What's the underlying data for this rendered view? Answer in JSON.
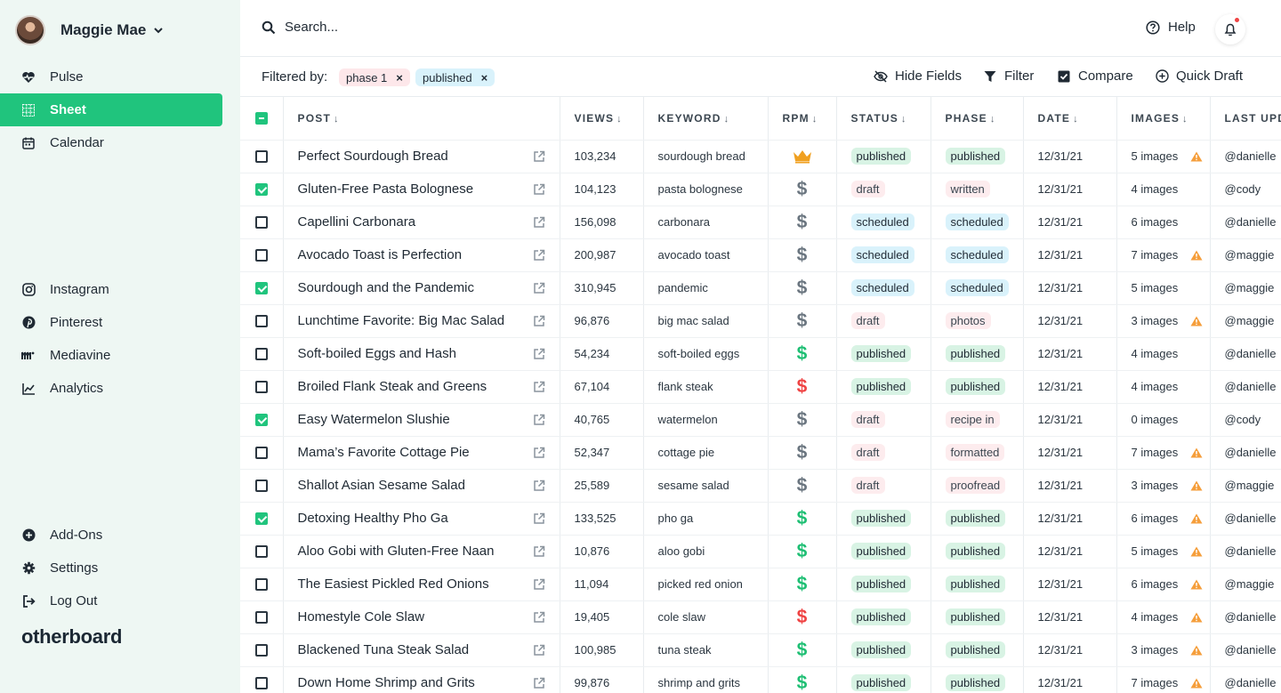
{
  "user": {
    "name": "Maggie Mae"
  },
  "nav": {
    "top": [
      {
        "label": "Pulse",
        "icon": "heartbeat-icon",
        "active": false
      },
      {
        "label": "Sheet",
        "icon": "grid-icon",
        "active": true
      },
      {
        "label": "Calendar",
        "icon": "calendar-icon",
        "active": false
      }
    ],
    "integrations": [
      {
        "label": "Instagram",
        "icon": "instagram-icon"
      },
      {
        "label": "Pinterest",
        "icon": "pinterest-icon"
      },
      {
        "label": "Mediavine",
        "icon": "mediavine-icon"
      },
      {
        "label": "Analytics",
        "icon": "analytics-icon"
      }
    ],
    "bottom": [
      {
        "label": "Add-Ons",
        "icon": "plus-circle-icon"
      },
      {
        "label": "Settings",
        "icon": "gear-icon"
      },
      {
        "label": "Log Out",
        "icon": "logout-icon"
      }
    ]
  },
  "brand": "otherboard",
  "search": {
    "placeholder": "Search..."
  },
  "header": {
    "help_label": "Help"
  },
  "filters": {
    "label": "Filtered by:",
    "chips": [
      "phase 1",
      "published"
    ]
  },
  "toolbar": {
    "hide_fields": "Hide Fields",
    "filter": "Filter",
    "compare": "Compare",
    "quick_draft": "Quick Draft"
  },
  "columns": [
    "POST",
    "VIEWS",
    "KEYWORD",
    "RPM",
    "STATUS",
    "PHASE",
    "DATE",
    "IMAGES",
    "LAST UPD"
  ],
  "colors": {
    "accent": "#20c47d",
    "rpm_gray": "#6b7680",
    "rpm_green": "#1fbf74",
    "rpm_red": "#ef4444",
    "crown": "#f0a020",
    "warning": "#f59e3b"
  },
  "pill_styles": {
    "published": {
      "bg": "#d8f3e4",
      "fg": "#1f2933"
    },
    "scheduled": {
      "bg": "#d9f2fb",
      "fg": "#1f2933"
    },
    "draft": {
      "bg": "#fdecee",
      "fg": "#3b4650"
    },
    "written": {
      "bg": "#fdecee",
      "fg": "#3b4650"
    },
    "photos": {
      "bg": "#fdecee",
      "fg": "#3b4650"
    },
    "recipe in": {
      "bg": "#fdecee",
      "fg": "#3b4650"
    },
    "formatted": {
      "bg": "#fdecee",
      "fg": "#3b4650"
    },
    "proofread": {
      "bg": "#fdecee",
      "fg": "#3b4650"
    }
  },
  "rows": [
    {
      "checked": false,
      "post": "Perfect Sourdough Bread",
      "views": "103,234",
      "keyword": "sourdough bread",
      "rpm": "crown",
      "status": "published",
      "phase": "published",
      "date": "12/31/21",
      "images": "5 images",
      "warning": true,
      "last_updated": "@danielle"
    },
    {
      "checked": true,
      "post": "Gluten-Free Pasta Bolognese",
      "views": "104,123",
      "keyword": "pasta bolognese",
      "rpm": "gray",
      "status": "draft",
      "phase": "written",
      "date": "12/31/21",
      "images": "4 images",
      "warning": false,
      "last_updated": "@cody"
    },
    {
      "checked": false,
      "post": "Capellini Carbonara",
      "views": "156,098",
      "keyword": "carbonara",
      "rpm": "gray",
      "status": "scheduled",
      "phase": "scheduled",
      "date": "12/31/21",
      "images": "6 images",
      "warning": false,
      "last_updated": "@danielle"
    },
    {
      "checked": false,
      "post": "Avocado Toast is Perfection",
      "views": "200,987",
      "keyword": "avocado toast",
      "rpm": "gray",
      "status": "scheduled",
      "phase": "scheduled",
      "date": "12/31/21",
      "images": "7 images",
      "warning": true,
      "last_updated": "@maggie"
    },
    {
      "checked": true,
      "post": "Sourdough and the Pandemic",
      "views": "310,945",
      "keyword": "pandemic",
      "rpm": "gray",
      "status": "scheduled",
      "phase": "scheduled",
      "date": "12/31/21",
      "images": "5 images",
      "warning": false,
      "last_updated": "@maggie"
    },
    {
      "checked": false,
      "post": "Lunchtime Favorite: Big Mac Salad",
      "views": "96,876",
      "keyword": "big mac salad",
      "rpm": "gray",
      "status": "draft",
      "phase": "photos",
      "date": "12/31/21",
      "images": "3 images",
      "warning": true,
      "last_updated": "@maggie"
    },
    {
      "checked": false,
      "post": "Soft-boiled Eggs and Hash",
      "views": "54,234",
      "keyword": "soft-boiled eggs",
      "rpm": "green",
      "status": "published",
      "phase": "published",
      "date": "12/31/21",
      "images": "4 images",
      "warning": false,
      "last_updated": "@danielle"
    },
    {
      "checked": false,
      "post": "Broiled Flank Steak and Greens",
      "views": "67,104",
      "keyword": "flank steak",
      "rpm": "red",
      "status": "published",
      "phase": "published",
      "date": "12/31/21",
      "images": "4 images",
      "warning": false,
      "last_updated": "@danielle"
    },
    {
      "checked": true,
      "post": "Easy Watermelon Slushie",
      "views": "40,765",
      "keyword": "watermelon",
      "rpm": "gray",
      "status": "draft",
      "phase": "recipe in",
      "date": "12/31/21",
      "images": "0 images",
      "warning": false,
      "last_updated": "@cody"
    },
    {
      "checked": false,
      "post": "Mama’s Favorite Cottage Pie",
      "views": "52,347",
      "keyword": "cottage pie",
      "rpm": "gray",
      "status": "draft",
      "phase": "formatted",
      "date": "12/31/21",
      "images": "7 images",
      "warning": true,
      "last_updated": "@danielle"
    },
    {
      "checked": false,
      "post": "Shallot Asian Sesame Salad",
      "views": "25,589",
      "keyword": "sesame salad",
      "rpm": "gray",
      "status": "draft",
      "phase": "proofread",
      "date": "12/31/21",
      "images": "3 images",
      "warning": true,
      "last_updated": "@maggie"
    },
    {
      "checked": true,
      "post": "Detoxing Healthy Pho Ga",
      "views": "133,525",
      "keyword": "pho ga",
      "rpm": "green",
      "status": "published",
      "phase": "published",
      "date": "12/31/21",
      "images": "6 images",
      "warning": true,
      "last_updated": "@danielle"
    },
    {
      "checked": false,
      "post": "Aloo Gobi with Gluten-Free Naan",
      "views": "10,876",
      "keyword": "aloo gobi",
      "rpm": "green",
      "status": "published",
      "phase": "published",
      "date": "12/31/21",
      "images": "5 images",
      "warning": true,
      "last_updated": "@danielle"
    },
    {
      "checked": false,
      "post": "The Easiest Pickled Red Onions",
      "views": "11,094",
      "keyword": "picked red onion",
      "rpm": "green",
      "status": "published",
      "phase": "published",
      "date": "12/31/21",
      "images": "6 images",
      "warning": true,
      "last_updated": "@maggie"
    },
    {
      "checked": false,
      "post": "Homestyle Cole Slaw",
      "views": "19,405",
      "keyword": "cole slaw",
      "rpm": "red",
      "status": "published",
      "phase": "published",
      "date": "12/31/21",
      "images": "4 images",
      "warning": true,
      "last_updated": "@danielle"
    },
    {
      "checked": false,
      "post": "Blackened Tuna Steak Salad",
      "views": "100,985",
      "keyword": "tuna steak",
      "rpm": "green",
      "status": "published",
      "phase": "published",
      "date": "12/31/21",
      "images": "3 images",
      "warning": true,
      "last_updated": "@danielle"
    },
    {
      "checked": false,
      "post": "Down Home Shrimp and Grits",
      "views": "99,876",
      "keyword": "shrimp and grits",
      "rpm": "green",
      "status": "published",
      "phase": "published",
      "date": "12/31/21",
      "images": "7 images",
      "warning": true,
      "last_updated": "@danielle"
    }
  ]
}
